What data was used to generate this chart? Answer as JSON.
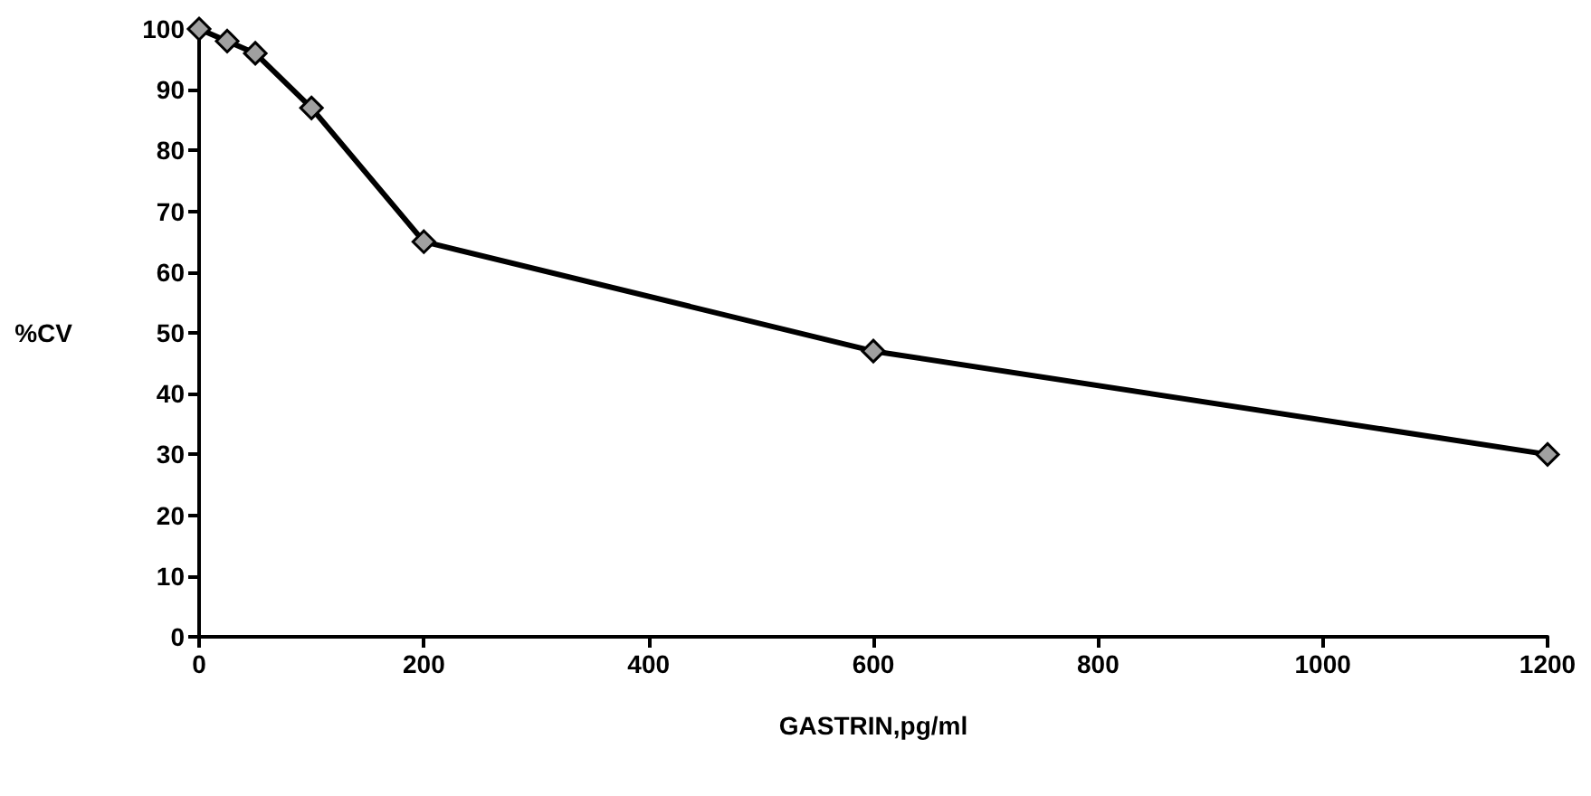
{
  "chart_data": {
    "type": "line",
    "xlabel": "GASTRIN,pg/ml",
    "ylabel": "%CV",
    "x": [
      0,
      25,
      50,
      100,
      200,
      600,
      1200
    ],
    "series": [
      {
        "color": "#000000",
        "values": [
          100,
          98,
          96,
          87,
          65,
          47,
          30
        ]
      }
    ],
    "xlim": [
      0,
      1200
    ],
    "xticks": [
      0,
      200,
      400,
      600,
      800,
      1000,
      1200
    ],
    "ylim": [
      0,
      100
    ],
    "yticks": [
      0,
      10,
      20,
      30,
      40,
      50,
      60,
      70,
      80,
      90,
      100
    ],
    "marker": "diamond",
    "line_style": "solid",
    "grid": false
  }
}
